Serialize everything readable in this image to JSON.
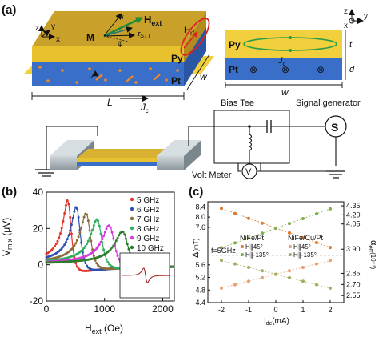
{
  "panels": {
    "a": {
      "label": "(a)",
      "device3d": {
        "labels": {
          "Hext": "H",
          "Hext_sub": "ext",
          "M": "M",
          "tauH": "τ",
          "tauH_sub": "H",
          "tauSTT": "τ",
          "tauSTT_sub": "STT",
          "phi": "φ",
          "Hrf": "H",
          "Hrf_sub": "rf",
          "Py": "Py",
          "Pt": "Pt",
          "L": "L",
          "w": "w",
          "Jc": "J",
          "Jc_sub": "c",
          "axis_z": "z",
          "axis_y": "y",
          "axis_x": "x"
        }
      },
      "cross_section": {
        "labels": {
          "Py": "Py",
          "Pt": "Pt",
          "Jc": "J",
          "Jc_sub": "c",
          "t": "t",
          "d": "d",
          "w": "w",
          "axis_z": "z",
          "axis_y": "y",
          "axis_x": "x",
          "cross_symbol": "⊗"
        }
      },
      "circuit": {
        "bias_tee": "Bias Tee",
        "signal_generator": "Signal generator",
        "source_symbol": "S",
        "volt_meter": "Volt Meter",
        "meter_symbol": "V"
      }
    },
    "b": {
      "label": "(b)",
      "ylabel_main": "V",
      "ylabel_sub": "mix",
      "ylabel_unit": " (μV)",
      "xlabel_main": "H",
      "xlabel_sub": "ext",
      "xlabel_unit": " (Oe)"
    },
    "c": {
      "label": "(c)",
      "ylabel_left": "Δ",
      "ylabel_left_unit": "(mT)",
      "ylabel_right": "α",
      "ylabel_right_sub": "eff",
      "ylabel_right_unit": "(10⁻²)",
      "xlabel_main": "I",
      "xlabel_sub": "dc",
      "xlabel_unit": "(mA)",
      "annotation_freq": "f=5GHz",
      "group_left": "NiFe/Pt",
      "group_right": "NiFe/Cu/Pt",
      "entry_45": "H∥45°",
      "entry_135": "H∥-135°"
    }
  },
  "chart_data": [
    {
      "type": "line",
      "panel": "b",
      "xlabel": "Hext (Oe)",
      "ylabel": "Vmix (μV)",
      "xlim": [
        0,
        2200
      ],
      "ylim": [
        -20,
        40
      ],
      "x_ticks": [
        "0",
        "1000",
        "2000"
      ],
      "y_ticks": [
        "-20",
        "0",
        "20",
        "40"
      ],
      "legend_position": "top-right",
      "series": [
        {
          "name": "5 GHz",
          "color": "#e4342b",
          "resonance": 390,
          "linewidth": 85,
          "amp_sym": 32,
          "amp_anti": -11
        },
        {
          "name": "6 GHz",
          "color": "#2f4fb5",
          "resonance": 540,
          "linewidth": 95,
          "amp_sym": 29,
          "amp_anti": -9.5
        },
        {
          "name": "7 GHz",
          "color": "#8a6d3b",
          "resonance": 710,
          "linewidth": 105,
          "amp_sym": 26,
          "amp_anti": -8
        },
        {
          "name": "8 GHz",
          "color": "#2fae5f",
          "resonance": 900,
          "linewidth": 115,
          "amp_sym": 23,
          "amp_anti": -7
        },
        {
          "name": "9 GHz",
          "color": "#d63adf",
          "resonance": 1110,
          "linewidth": 125,
          "amp_sym": 20,
          "amp_anti": -6
        },
        {
          "name": "10 GHz",
          "color": "#2a7d2a",
          "resonance": 1340,
          "linewidth": 135,
          "amp_sym": 17,
          "amp_anti": -5
        }
      ]
    },
    {
      "type": "scatter",
      "panel": "c",
      "xlabel": "Idc(mA)",
      "ylabel_left": "Δ(mT)",
      "ylabel_right": "αeff(10⁻²)",
      "xlim": [
        -2.5,
        2.5
      ],
      "ylim_left": [
        4.4,
        8.6
      ],
      "ylim_right": [
        2.45,
        4.45
      ],
      "x_ticks": [
        "-2",
        "-1",
        "0",
        "1",
        "2"
      ],
      "y_ticks_left": [
        "4.4",
        "4.8",
        "5.2",
        "5.6",
        "7.6",
        "8.0",
        "8.4"
      ],
      "y_ticks_right": [
        "2.55",
        "2.70",
        "2.85",
        "3.90",
        "4.05",
        "4.20",
        "4.35"
      ],
      "x": [
        -2,
        -1.5,
        -1,
        -0.5,
        0,
        0.5,
        1,
        1.5,
        2
      ],
      "series": [
        {
          "name": "NiFe/Pt H∥45°",
          "color": "#e07a2b",
          "axis": "left",
          "y": [
            8.34,
            8.14,
            7.95,
            7.76,
            7.57,
            7.38,
            7.19,
            7.0,
            6.81
          ]
        },
        {
          "name": "NiFe/Pt H∥-135°",
          "color": "#7fae4a",
          "axis": "left",
          "y": [
            6.8,
            6.99,
            7.18,
            7.37,
            7.56,
            7.75,
            7.94,
            8.13,
            8.32
          ]
        },
        {
          "name": "NiFe/Cu/Pt H∥45°",
          "color": "#e8a070",
          "axis": "left",
          "y": [
            4.86,
            4.97,
            5.08,
            5.19,
            5.3,
            5.41,
            5.52,
            5.63,
            5.74
          ]
        },
        {
          "name": "NiFe/Cu/Pt H∥-135°",
          "color": "#9bb060",
          "axis": "left",
          "y": [
            5.74,
            5.63,
            5.52,
            5.41,
            5.3,
            5.19,
            5.08,
            4.97,
            4.86
          ]
        }
      ]
    }
  ]
}
